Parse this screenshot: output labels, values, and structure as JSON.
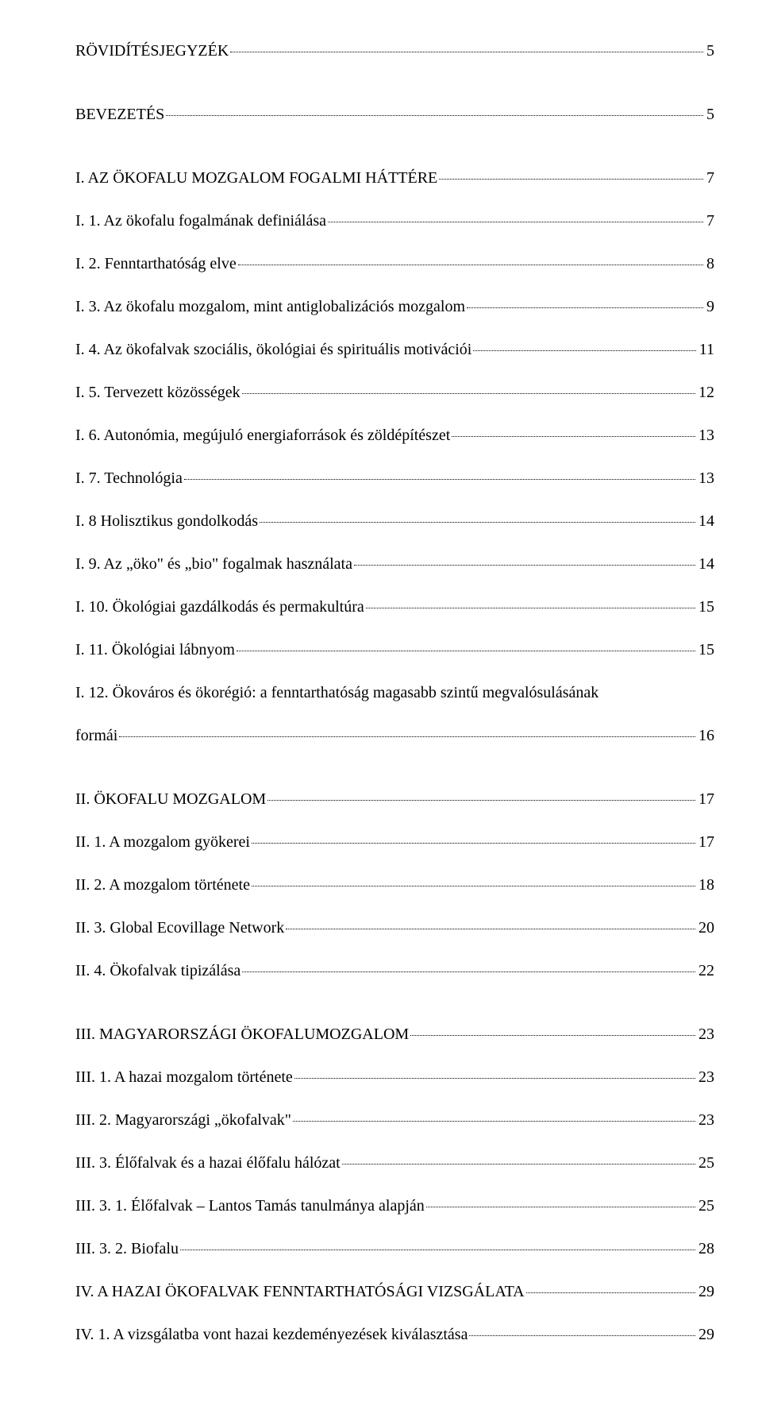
{
  "entries": [
    {
      "title": "RÖVIDÍTÉSJEGYZÉK",
      "page": "5",
      "spacer_after": true
    },
    {
      "title": "BEVEZETÉS",
      "page": "5",
      "spacer_after": true
    },
    {
      "title": "I. AZ ÖKOFALU MOZGALOM FOGALMI HÁTTÉRE",
      "page": "7"
    },
    {
      "title": "I. 1. Az ökofalu fogalmának definiálása",
      "page": "7"
    },
    {
      "title": "I. 2. Fenntarthatóság elve",
      "page": "8"
    },
    {
      "title": "I. 3. Az ökofalu mozgalom, mint antiglobalizációs mozgalom",
      "page": "9"
    },
    {
      "title": "I. 4. Az ökofalvak szociális, ökológiai és spirituális motivációi",
      "page": "11"
    },
    {
      "title": "I. 5. Tervezett közösségek",
      "page": "12"
    },
    {
      "title": "I. 6. Autonómia, megújuló energiaforrások és zöldépítészet",
      "page": "13"
    },
    {
      "title": "I. 7. Technológia",
      "page": "13"
    },
    {
      "title": "I. 8 Holisztikus gondolkodás",
      "page": "14"
    },
    {
      "title": "I. 9. Az „öko\" és „bio\" fogalmak használata",
      "page": "14"
    },
    {
      "title": "I. 10. Ökológiai gazdálkodás és permakultúra",
      "page": "15"
    },
    {
      "title": "I. 11. Ökológiai lábnyom",
      "page": "15"
    },
    {
      "title_line1": "I. 12. Ökováros és ökorégió: a fenntarthatóság magasabb szintű megvalósulásának",
      "title_line2": "formái",
      "page": "16",
      "wrap": true,
      "spacer_after": true
    },
    {
      "title": "II. ÖKOFALU MOZGALOM",
      "page": "17"
    },
    {
      "title": "II. 1. A mozgalom gyökerei",
      "page": "17"
    },
    {
      "title": "II. 2. A mozgalom története",
      "page": "18"
    },
    {
      "title": "II. 3. Global Ecovillage Network",
      "page": "20"
    },
    {
      "title": "II. 4. Ökofalvak tipizálása",
      "page": "22",
      "spacer_after": true
    },
    {
      "title": "III. MAGYARORSZÁGI ÖKOFALUMOZGALOM",
      "page": "23"
    },
    {
      "title": "III. 1. A hazai mozgalom története",
      "page": "23"
    },
    {
      "title": "III. 2. Magyarországi „ökofalvak\"",
      "page": "23"
    },
    {
      "title": "III. 3. Élőfalvak és a hazai élőfalu hálózat",
      "page": "25"
    },
    {
      "title": "III. 3. 1. Élőfalvak – Lantos Tamás tanulmánya alapján",
      "page": "25"
    },
    {
      "title": "III. 3. 2. Biofalu",
      "page": "28"
    },
    {
      "title": "IV. A HAZAI ÖKOFALVAK FENNTARTHATÓSÁGI VIZSGÁLATA",
      "page": "29"
    },
    {
      "title": "IV. 1. A vizsgálatba vont hazai kezdeményezések kiválasztása",
      "page": "29"
    }
  ]
}
